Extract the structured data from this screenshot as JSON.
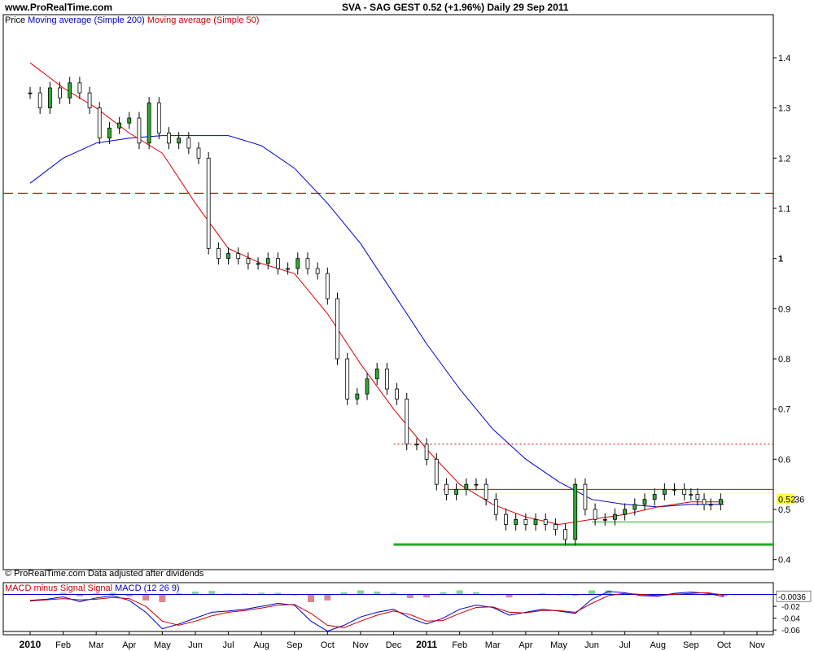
{
  "header": {
    "site": "www.ProRealTime.com",
    "title": "SVA - SAG GEST    0.52 (+1.96%)    Daily  29 Sep 2011"
  },
  "legend": {
    "price": "Price",
    "ma200": "Moving average (Simple 200)",
    "ma50": "Moving average (Simple 50)"
  },
  "footer_note": "© ProRealTime.com  Data adjusted after dividends",
  "macd_legend": {
    "part1": "MACD minus Signal",
    "part2": "Signal",
    "part3": "MACD (12 26 9)"
  },
  "colors": {
    "price": "#000000",
    "candle_up": "#33aa33",
    "ma200": "#0000cc",
    "ma50": "#dd0000",
    "resistance": "#cc0000",
    "support": "#22aa22",
    "macd_hist_pos": "#33bb33",
    "macd_hist_neg": "#cc3333"
  },
  "chart_data": [
    {
      "type": "line",
      "x_ticks": [
        "2010",
        "Feb",
        "Mar",
        "Apr",
        "May",
        "Jun",
        "Jul",
        "Aug",
        "Sep",
        "Oct",
        "Nov",
        "Dec",
        "2011",
        "Feb",
        "Mar",
        "Apr",
        "May",
        "Jun",
        "Jul",
        "Aug",
        "Sep",
        "Oct",
        "Nov"
      ],
      "y_ticks": [
        0.4,
        0.5,
        0.6,
        0.7,
        0.8,
        0.9,
        1,
        1.1,
        1.2,
        1.3,
        1.4
      ],
      "y_tick_labels": [
        "0.4",
        "0.5",
        "0.6",
        "0.7",
        "0.8",
        "0.9",
        "1",
        "1.1",
        "1.2",
        "1.3",
        "1.4"
      ],
      "ylim": [
        0.38,
        1.46
      ],
      "xlim_months": [
        0,
        22
      ],
      "last_price_label": "0.52",
      "last_price_suffix": "36",
      "series": [
        {
          "name": "Price",
          "style": "ohlc",
          "x_month": [
            0.0,
            0.3,
            0.6,
            0.9,
            1.2,
            1.5,
            1.8,
            2.1,
            2.4,
            2.7,
            3.0,
            3.3,
            3.6,
            3.9,
            4.2,
            4.5,
            4.8,
            5.1,
            5.4,
            5.7,
            6.0,
            6.3,
            6.6,
            6.9,
            7.2,
            7.5,
            7.8,
            8.1,
            8.4,
            8.7,
            9.0,
            9.3,
            9.6,
            9.9,
            10.2,
            10.5,
            10.8,
            11.1,
            11.4,
            11.7,
            12.0,
            12.3,
            12.6,
            12.9,
            13.2,
            13.5,
            13.8,
            14.1,
            14.4,
            14.7,
            15.0,
            15.3,
            15.6,
            15.9,
            16.2,
            16.5,
            16.8,
            17.1,
            17.4,
            17.7,
            18.0,
            18.3,
            18.6,
            18.9,
            19.2,
            19.5,
            19.8,
            20.0,
            20.2,
            20.4,
            20.6,
            20.9
          ],
          "close": [
            1.33,
            1.3,
            1.34,
            1.32,
            1.35,
            1.33,
            1.3,
            1.24,
            1.26,
            1.27,
            1.28,
            1.23,
            1.31,
            1.25,
            1.23,
            1.24,
            1.22,
            1.2,
            1.02,
            1.0,
            1.01,
            1.0,
            0.99,
            0.99,
            1.0,
            0.98,
            0.98,
            1.0,
            0.98,
            0.97,
            0.92,
            0.8,
            0.72,
            0.73,
            0.76,
            0.78,
            0.74,
            0.72,
            0.63,
            0.63,
            0.6,
            0.55,
            0.53,
            0.54,
            0.55,
            0.55,
            0.52,
            0.49,
            0.47,
            0.48,
            0.47,
            0.48,
            0.47,
            0.46,
            0.44,
            0.55,
            0.5,
            0.48,
            0.48,
            0.49,
            0.5,
            0.51,
            0.52,
            0.53,
            0.54,
            0.54,
            0.53,
            0.53,
            0.52,
            0.51,
            0.51,
            0.52
          ]
        },
        {
          "name": "Moving average (Simple 200)",
          "style": "line",
          "x_month": [
            0,
            1,
            2,
            3,
            4,
            5,
            6,
            7,
            8,
            9,
            10,
            11,
            12,
            13,
            14,
            15,
            16,
            17,
            18,
            19,
            20,
            21
          ],
          "values": [
            1.15,
            1.2,
            1.23,
            1.24,
            1.245,
            1.245,
            1.245,
            1.225,
            1.18,
            1.11,
            1.03,
            0.93,
            0.83,
            0.74,
            0.66,
            0.6,
            0.555,
            0.52,
            0.51,
            0.505,
            0.51,
            0.51
          ]
        },
        {
          "name": "Moving average (Simple 50)",
          "style": "line",
          "x_month": [
            0,
            1,
            2,
            3,
            4,
            5,
            6,
            7,
            8,
            9,
            10,
            11,
            12,
            13,
            14,
            15,
            16,
            17,
            18,
            19,
            20,
            21
          ],
          "values": [
            1.39,
            1.34,
            1.3,
            1.25,
            1.21,
            1.11,
            1.02,
            0.99,
            0.97,
            0.89,
            0.79,
            0.7,
            0.62,
            0.55,
            0.51,
            0.485,
            0.47,
            0.48,
            0.49,
            0.505,
            0.515,
            0.515
          ]
        }
      ],
      "reference_lines": [
        {
          "name": "resistance-dashed",
          "value": 1.13,
          "style": "dashed",
          "x_start": 0,
          "x_end": 22
        },
        {
          "name": "resistance-dotted",
          "value": 0.63,
          "style": "dotted",
          "x_start": 11,
          "x_end": 22
        },
        {
          "name": "resistance-solid",
          "value": 0.54,
          "style": "solid",
          "x_start": 12.5,
          "x_end": 22
        },
        {
          "name": "support-thin",
          "value": 0.475,
          "style": "solid",
          "x_start": 17,
          "x_end": 22
        },
        {
          "name": "support-thick",
          "value": 0.43,
          "style": "solid",
          "x_start": 11,
          "x_end": 22
        }
      ]
    },
    {
      "type": "bar",
      "name": "MACD (12 26 9)",
      "y_ticks": [
        0,
        -0.02,
        -0.04,
        -0.06
      ],
      "y_tick_labels": [
        "0",
        "-0.02",
        "-0.04",
        "-0.06"
      ],
      "ylim": [
        -0.068,
        0.02
      ],
      "last_value_label": "-0.0036",
      "x_month": [
        0,
        0.5,
        1,
        1.5,
        2,
        2.5,
        3,
        3.5,
        4,
        4.5,
        5,
        5.5,
        6,
        6.5,
        7,
        7.5,
        8,
        8.5,
        9,
        9.5,
        10,
        10.5,
        11,
        11.5,
        12,
        12.5,
        13,
        13.5,
        14,
        14.5,
        15,
        15.5,
        16,
        16.5,
        17,
        17.5,
        18,
        18.5,
        19,
        19.5,
        20,
        20.5,
        21
      ],
      "macd": [
        -0.01,
        -0.008,
        -0.004,
        -0.012,
        -0.006,
        -0.002,
        -0.01,
        -0.03,
        -0.058,
        -0.05,
        -0.04,
        -0.03,
        -0.028,
        -0.025,
        -0.02,
        -0.015,
        -0.018,
        -0.045,
        -0.062,
        -0.052,
        -0.038,
        -0.03,
        -0.025,
        -0.04,
        -0.05,
        -0.04,
        -0.025,
        -0.018,
        -0.022,
        -0.035,
        -0.03,
        -0.025,
        -0.028,
        -0.032,
        -0.008,
        0.005,
        0.003,
        -0.002,
        -0.003,
        0.002,
        0.004,
        0.002,
        -0.0036
      ],
      "signal": [
        -0.011,
        -0.009,
        -0.007,
        -0.009,
        -0.008,
        -0.005,
        -0.007,
        -0.02,
        -0.045,
        -0.052,
        -0.045,
        -0.036,
        -0.03,
        -0.027,
        -0.023,
        -0.018,
        -0.017,
        -0.032,
        -0.052,
        -0.056,
        -0.045,
        -0.035,
        -0.028,
        -0.034,
        -0.045,
        -0.044,
        -0.032,
        -0.022,
        -0.021,
        -0.03,
        -0.031,
        -0.027,
        -0.027,
        -0.03,
        -0.015,
        -0.002,
        0.002,
        0.0,
        -0.002,
        0.0,
        0.002,
        0.003,
        -0.001
      ]
    }
  ]
}
